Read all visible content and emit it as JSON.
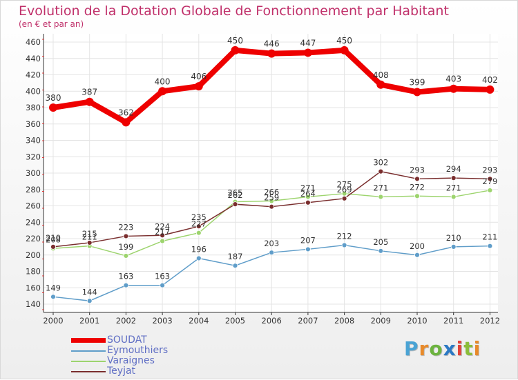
{
  "chart_data": {
    "type": "line",
    "title": "Evolution de la Dotation Globale de Fonctionnement par Habitant",
    "subtitle": "(en € et par an)",
    "xlabel": "",
    "ylabel": "",
    "categories": [
      "2000",
      "2001",
      "2002",
      "2003",
      "2004",
      "2005",
      "2006",
      "2007",
      "2008",
      "2009",
      "2010",
      "2011",
      "2012"
    ],
    "ylim": [
      140,
      460
    ],
    "yticks": [
      140,
      160,
      180,
      200,
      220,
      240,
      260,
      280,
      300,
      320,
      340,
      360,
      380,
      400,
      420,
      440,
      460
    ],
    "grid": true,
    "legend_position": "bottom-left",
    "series": [
      {
        "name": "SOUDAT",
        "color": "#ee0000",
        "values": [
          380,
          387,
          362,
          400,
          406,
          450,
          446,
          447,
          450,
          408,
          399,
          403,
          402
        ]
      },
      {
        "name": "Eymouthiers",
        "color": "#5f9dc9",
        "values": [
          149,
          144,
          163,
          163,
          196,
          187,
          203,
          207,
          212,
          205,
          200,
          210,
          211
        ]
      },
      {
        "name": "Varaignes",
        "color": "#9dd46e",
        "values": [
          208,
          211,
          199,
          217,
          227,
          265,
          266,
          271,
          275,
          271,
          272,
          271,
          279
        ]
      },
      {
        "name": "Teyjat",
        "color": "#7a2e2e",
        "values": [
          210,
          215,
          223,
          224,
          235,
          262,
          259,
          264,
          269,
          302,
          293,
          294,
          293
        ]
      }
    ]
  },
  "logo": {
    "letters": [
      "P",
      "r",
      "o",
      "x",
      "i",
      "t",
      "i"
    ]
  }
}
